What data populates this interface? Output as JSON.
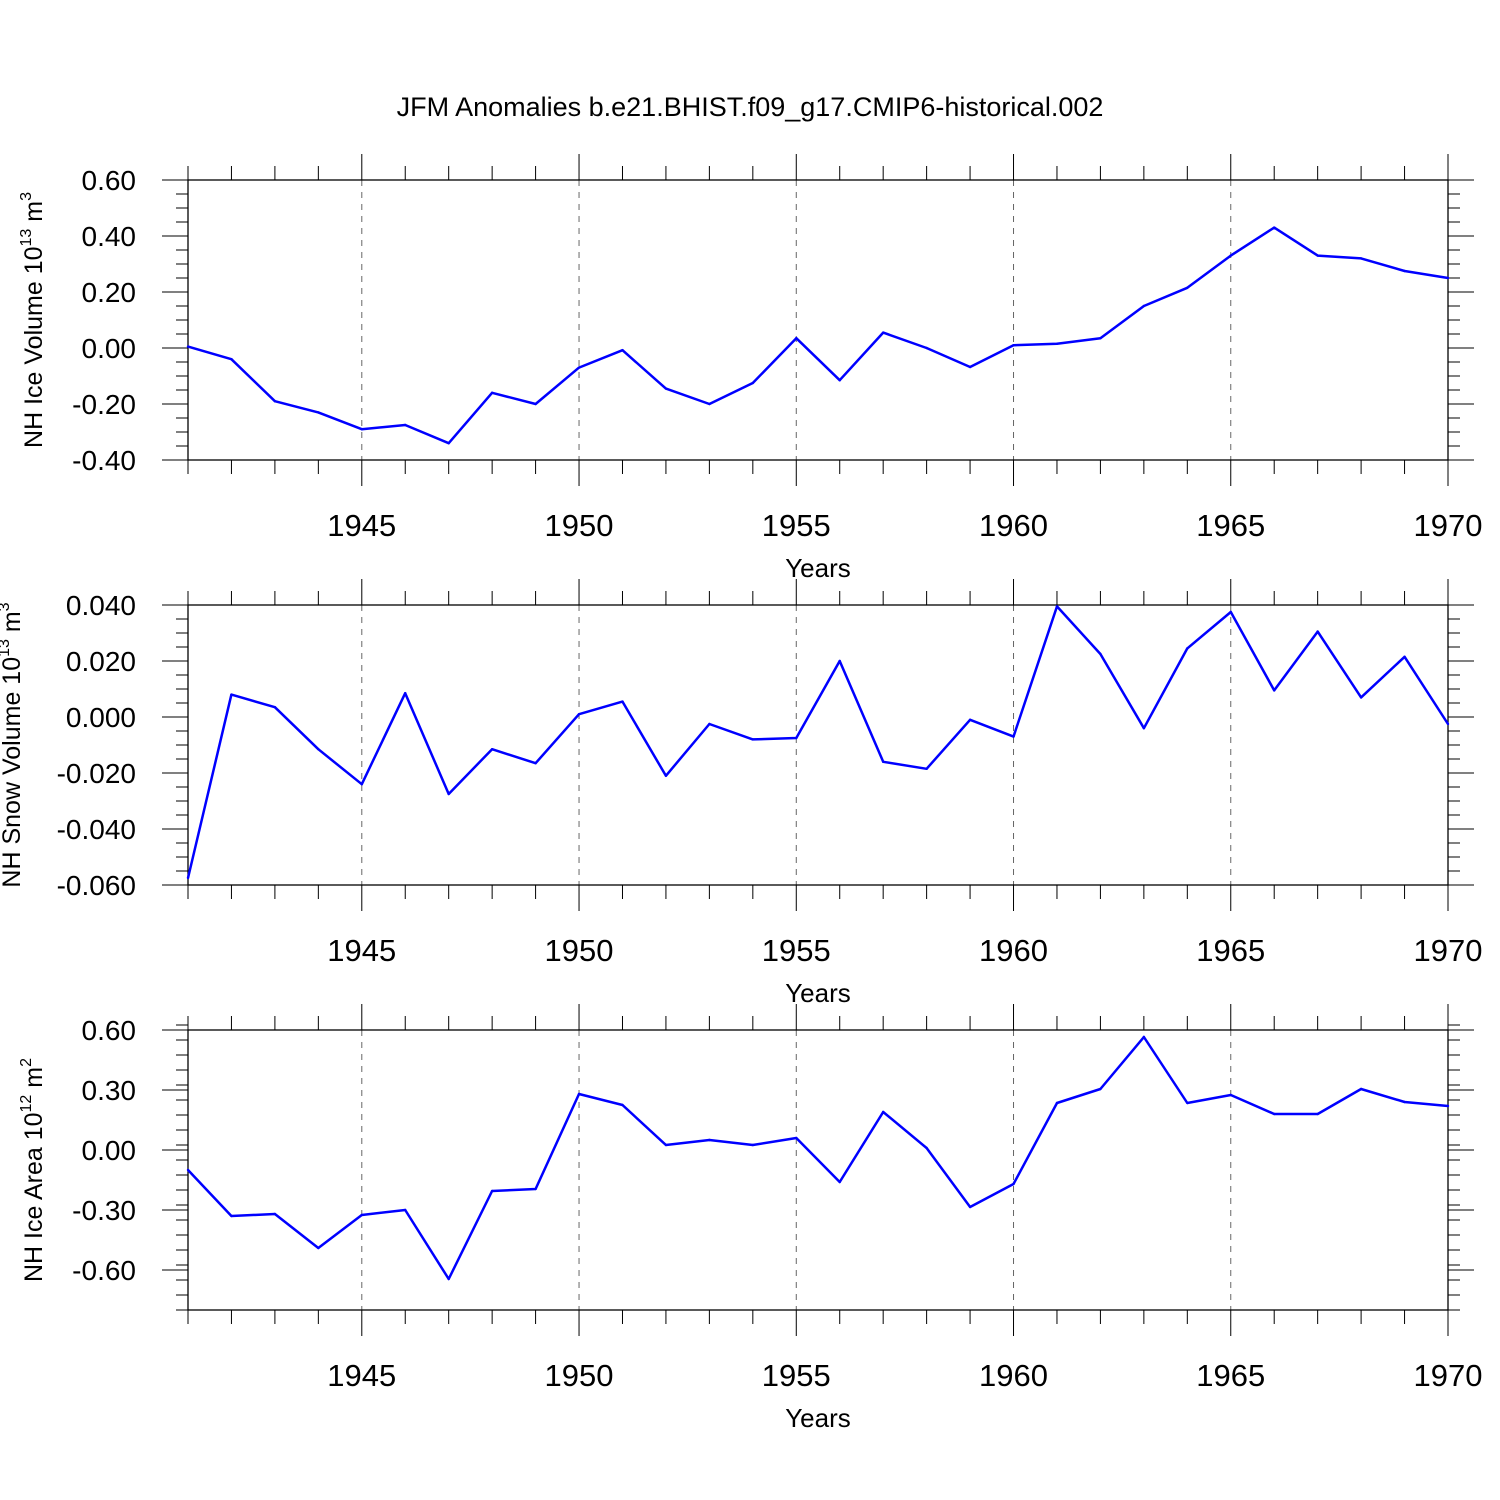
{
  "title": "JFM Anomalies b.e21.BHIST.f09_g17.CMIP6-historical.002",
  "colors": {
    "line": "#0000ff",
    "frame": "#000000",
    "grid": "#000000"
  },
  "chart_data": [
    {
      "type": "line",
      "ylabel": {
        "text": "NH Ice Volume 10",
        "sup": "13",
        "unit": " m",
        "unit_sup": "3"
      },
      "xlabel": "Years",
      "xlim": [
        1941,
        1970
      ],
      "ylim": [
        -0.4,
        0.6
      ],
      "yticks": [
        -0.4,
        -0.2,
        0.0,
        0.2,
        0.4,
        0.6
      ],
      "ytick_labels": [
        "-0.40",
        "-0.20",
        "0.00",
        "0.20",
        "0.40",
        "0.60"
      ],
      "xticks": [
        1945,
        1950,
        1955,
        1960,
        1965,
        1970
      ],
      "xtick_labels": [
        "1945",
        "1950",
        "1955",
        "1960",
        "1965",
        "1970"
      ],
      "grid": "vertical dashed at labeled years",
      "x": [
        1941,
        1942,
        1943,
        1944,
        1945,
        1946,
        1947,
        1948,
        1949,
        1950,
        1951,
        1952,
        1953,
        1954,
        1955,
        1956,
        1957,
        1958,
        1959,
        1960,
        1961,
        1962,
        1963,
        1964,
        1965,
        1966,
        1967,
        1968,
        1969,
        1970
      ],
      "series": [
        {
          "values": [
            0.005,
            -0.04,
            -0.19,
            -0.23,
            -0.29,
            -0.275,
            -0.34,
            -0.16,
            -0.2,
            -0.07,
            -0.008,
            -0.145,
            -0.2,
            -0.125,
            0.035,
            -0.115,
            0.055,
            0.0,
            -0.068,
            0.01,
            0.015,
            0.035,
            0.15,
            0.215,
            0.33,
            0.43,
            0.33,
            0.32,
            0.275,
            0.25
          ]
        }
      ]
    },
    {
      "type": "line",
      "ylabel": {
        "text": "NH Snow Volume 10",
        "sup": "13",
        "unit": " m",
        "unit_sup": "3"
      },
      "xlabel": "Years",
      "xlim": [
        1941,
        1970
      ],
      "ylim": [
        -0.06,
        0.04
      ],
      "yticks": [
        -0.06,
        -0.04,
        -0.02,
        0.0,
        0.02,
        0.04
      ],
      "ytick_labels": [
        "-0.060",
        "-0.040",
        "-0.020",
        "0.000",
        "0.020",
        "0.040"
      ],
      "xticks": [
        1945,
        1950,
        1955,
        1960,
        1965,
        1970
      ],
      "xtick_labels": [
        "1945",
        "1950",
        "1955",
        "1960",
        "1965",
        "1970"
      ],
      "grid": "vertical dashed at labeled years",
      "x": [
        1941,
        1942,
        1943,
        1944,
        1945,
        1946,
        1947,
        1948,
        1949,
        1950,
        1951,
        1952,
        1953,
        1954,
        1955,
        1956,
        1957,
        1958,
        1959,
        1960,
        1961,
        1962,
        1963,
        1964,
        1965,
        1966,
        1967,
        1968,
        1969,
        1970
      ],
      "series": [
        {
          "values": [
            -0.0575,
            0.008,
            0.0035,
            -0.0115,
            -0.024,
            0.0085,
            -0.0275,
            -0.0115,
            -0.0165,
            0.001,
            0.0055,
            -0.021,
            -0.0025,
            -0.008,
            -0.0075,
            0.02,
            -0.016,
            -0.0185,
            -0.001,
            -0.007,
            0.0395,
            0.0225,
            -0.004,
            0.0245,
            0.0375,
            0.0095,
            0.0305,
            0.007,
            0.0215,
            -0.0025
          ]
        }
      ]
    },
    {
      "type": "line",
      "ylabel": {
        "text": "NH Ice Area 10",
        "sup": "12",
        "unit": " m",
        "unit_sup": "2"
      },
      "xlabel": "Years",
      "xlim": [
        1941,
        1970
      ],
      "ylim": [
        -0.8,
        0.6
      ],
      "yticks": [
        -0.6,
        -0.3,
        0.0,
        0.3,
        0.6
      ],
      "ytick_labels": [
        "-0.60",
        "-0.30",
        "0.00",
        "0.30",
        "0.60"
      ],
      "xticks": [
        1945,
        1950,
        1955,
        1960,
        1965,
        1970
      ],
      "xtick_labels": [
        "1945",
        "1950",
        "1955",
        "1960",
        "1965",
        "1970"
      ],
      "grid": "vertical dashed at labeled years",
      "x": [
        1941,
        1942,
        1943,
        1944,
        1945,
        1946,
        1947,
        1948,
        1949,
        1950,
        1951,
        1952,
        1953,
        1954,
        1955,
        1956,
        1957,
        1958,
        1959,
        1960,
        1961,
        1962,
        1963,
        1964,
        1965,
        1966,
        1967,
        1968,
        1969,
        1970
      ],
      "series": [
        {
          "values": [
            -0.1,
            -0.33,
            -0.32,
            -0.49,
            -0.325,
            -0.3,
            -0.645,
            -0.205,
            -0.195,
            0.28,
            0.225,
            0.025,
            0.05,
            0.025,
            0.06,
            -0.16,
            0.19,
            0.01,
            -0.285,
            -0.17,
            0.235,
            0.305,
            0.565,
            0.235,
            0.275,
            0.18,
            0.18,
            0.305,
            0.24,
            0.22
          ]
        }
      ]
    }
  ]
}
